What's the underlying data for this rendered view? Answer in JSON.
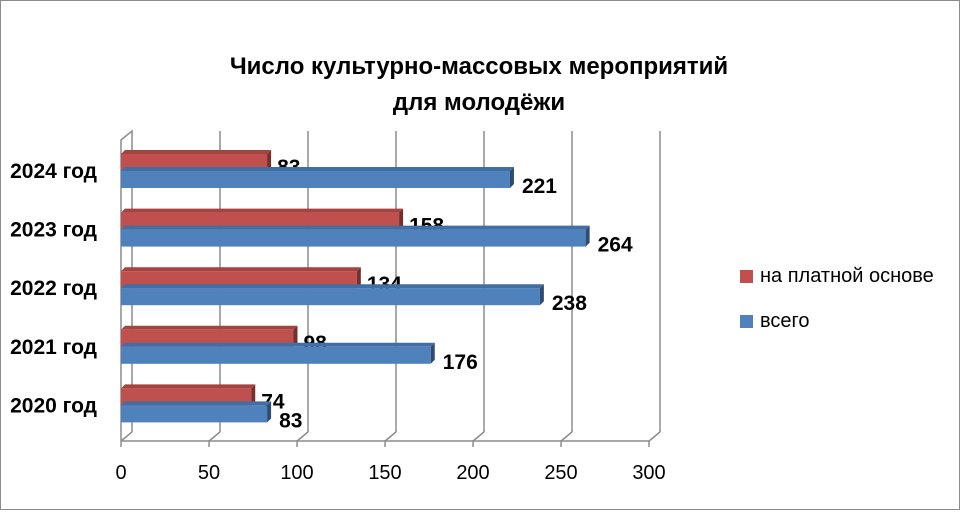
{
  "chart_data": {
    "type": "bar",
    "orientation": "horizontal",
    "title": "Число культурно-массовых мероприятий для молодёжи",
    "title_lines": [
      "Число культурно-массовых мероприятий",
      "для молодёжи"
    ],
    "categories": [
      "2020 год",
      "2021 год",
      "2022 год",
      "2023 год",
      "2024 год"
    ],
    "series": [
      {
        "name": "на платной основе",
        "values": [
          74,
          98,
          134,
          158,
          83
        ],
        "color": "#c0504d"
      },
      {
        "name": "всего",
        "values": [
          83,
          176,
          238,
          264,
          221
        ],
        "color": "#4f81bd"
      }
    ],
    "xlim": [
      0,
      300
    ],
    "x_ticks": [
      "0",
      "50",
      "100",
      "150",
      "200",
      "250",
      "300"
    ],
    "grid": true,
    "legend_position": "right",
    "style": "3d-bar"
  }
}
